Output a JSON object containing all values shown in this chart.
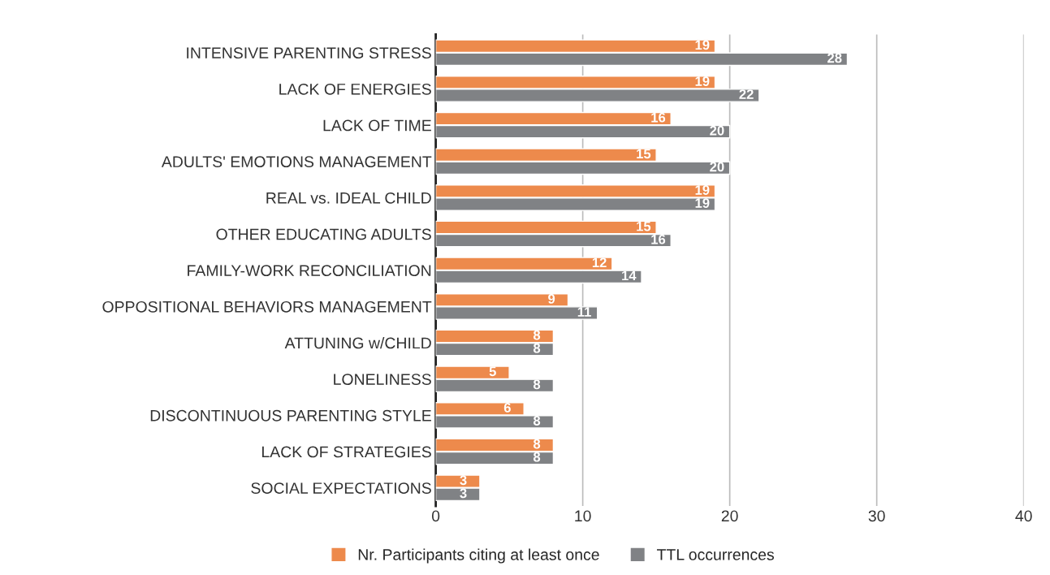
{
  "chart_data": {
    "type": "bar",
    "orientation": "horizontal",
    "categories": [
      "INTENSIVE PARENTING STRESS",
      "LACK OF ENERGIES",
      "LACK OF TIME",
      "ADULTS' EMOTIONS MANAGEMENT",
      "REAL vs. IDEAL CHILD",
      "OTHER EDUCATING ADULTS",
      "FAMILY-WORK RECONCILIATION",
      "OPPOSITIONAL BEHAVIORS MANAGEMENT",
      "ATTUNING w/CHILD",
      "LONELINESS",
      "DISCONTINUOUS PARENTING STYLE",
      "LACK OF STRATEGIES",
      "SOCIAL EXPECTATIONS"
    ],
    "series": [
      {
        "name": "Nr. Participants citing at least once",
        "color": "#ed8a4c",
        "values": [
          19,
          19,
          16,
          15,
          19,
          15,
          12,
          9,
          8,
          5,
          6,
          8,
          3
        ]
      },
      {
        "name": "TTL occurrences",
        "color": "#808285",
        "values": [
          28,
          22,
          20,
          20,
          19,
          16,
          14,
          11,
          8,
          8,
          8,
          8,
          3
        ]
      }
    ],
    "xlim": [
      0,
      40
    ],
    "xticks": [
      0,
      10,
      20,
      30,
      40
    ],
    "grid": "x",
    "legend": "bottom",
    "data_labels": true
  }
}
